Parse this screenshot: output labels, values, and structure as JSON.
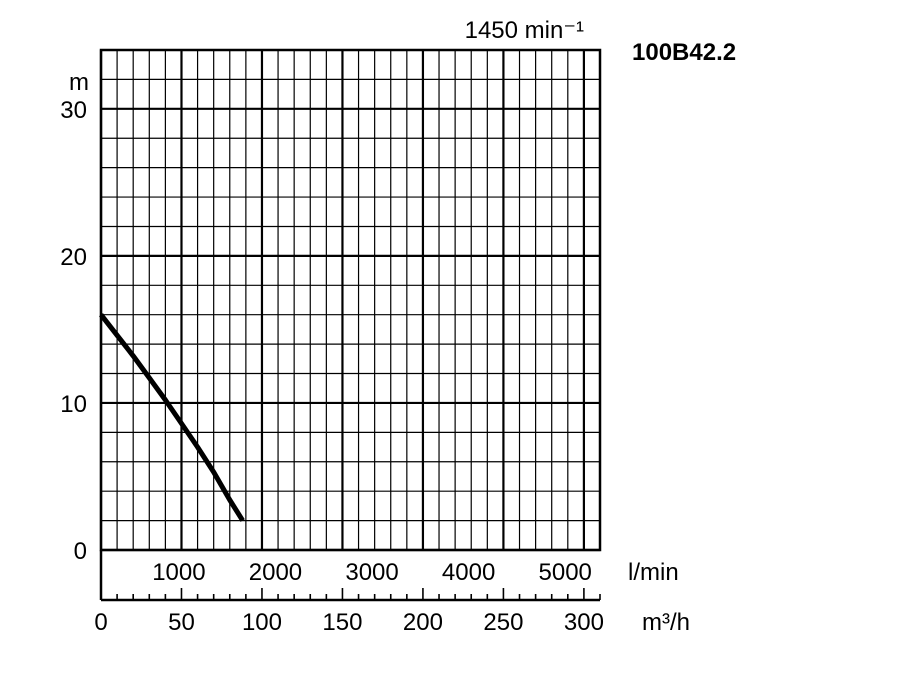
{
  "chart_data": {
    "type": "line",
    "title": "100B42.2",
    "subtitle": "1450 min⁻¹",
    "ylabel": "m",
    "xlabel_flow_lmin": "l/min",
    "xlabel_flow_m3h": "m³/h",
    "ylim": [
      0,
      34
    ],
    "xlim_m3h": [
      0,
      310
    ],
    "y_ticks": [
      0,
      10,
      20,
      30
    ],
    "x_ticks_lmin": [
      1000,
      2000,
      3000,
      4000,
      5000
    ],
    "x_ticks_m3h": [
      0,
      50,
      100,
      150,
      200,
      250,
      300
    ],
    "grid": true,
    "series": [
      {
        "x_m3h": [
          0,
          10,
          20,
          30,
          40,
          50,
          60,
          70,
          80,
          88
        ],
        "y_m": [
          16.0,
          14.6,
          13.2,
          11.7,
          10.2,
          8.6,
          7.0,
          5.3,
          3.4,
          2.0
        ]
      }
    ]
  },
  "colors": {
    "grid": "#000000",
    "curve": "#000000",
    "background": "#ffffff"
  }
}
